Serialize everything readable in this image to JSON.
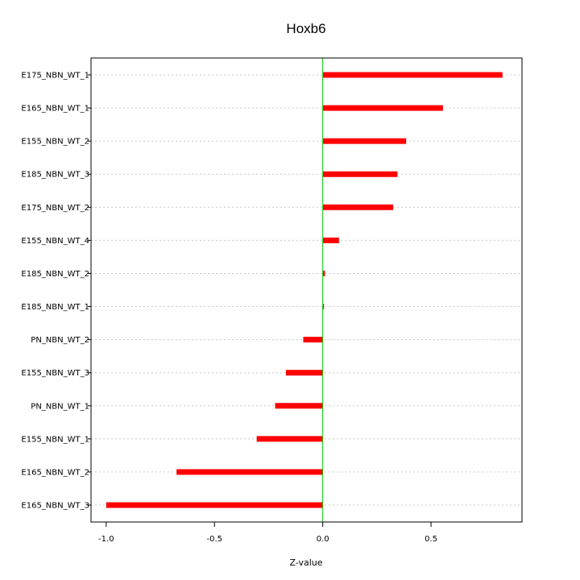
{
  "chart_data": {
    "type": "bar",
    "orientation": "horizontal",
    "title": "Hoxb6",
    "xlabel": "Z-value",
    "ylabel": "",
    "xlim": [
      -1.07,
      0.92
    ],
    "xticks": [
      -1.0,
      -0.5,
      0.0,
      0.5
    ],
    "xtick_labels": [
      "-1.0",
      "-0.5",
      "0.0",
      "0.5"
    ],
    "reference_line": 0.0,
    "grid": "horizontal dotted",
    "bar_color": "#ff0000",
    "reference_line_color": "#00cc00",
    "categories": [
      "E175_NBN_WT_1",
      "E165_NBN_WT_1",
      "E155_NBN_WT_2",
      "E185_NBN_WT_3",
      "E175_NBN_WT_2",
      "E155_NBN_WT_4",
      "E185_NBN_WT_2",
      "E185_NBN_WT_1",
      "PN_NBN_WT_2",
      "E155_NBN_WT_3",
      "PN_NBN_WT_1",
      "E155_NBN_WT_1",
      "E165_NBN_WT_2",
      "E165_NBN_WT_3"
    ],
    "values": [
      0.83,
      0.555,
      0.385,
      0.345,
      0.325,
      0.075,
      0.01,
      0.005,
      -0.09,
      -0.17,
      -0.22,
      -0.305,
      -0.675,
      -1.0
    ]
  }
}
